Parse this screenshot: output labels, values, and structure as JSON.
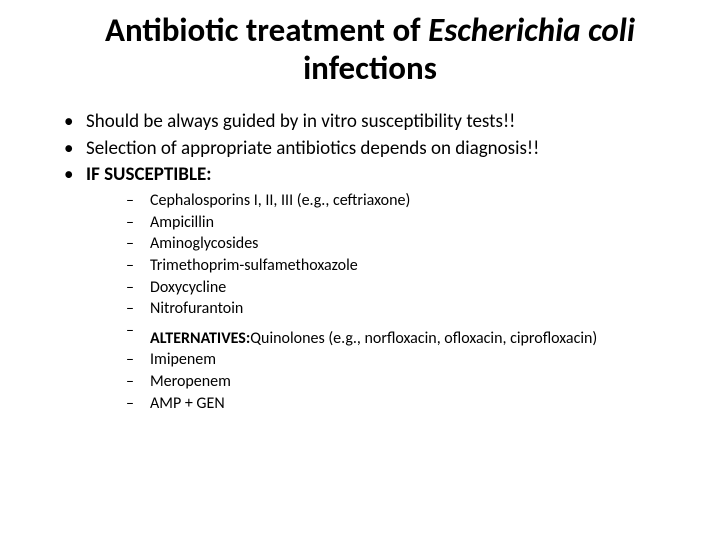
{
  "title": {
    "part1": "Antibiotic treatment of ",
    "italic": "Escherichia coli",
    "part2": " infections"
  },
  "bullets_top": [
    "Should be always guided by in vitro susceptibility tests!!",
    "Selection of appropriate antibiotics depends on diagnosis!!"
  ],
  "subhead": "IF SUSCEPTIBLE:",
  "sub_items_a": [
    "Cephalosporins I, II, III (e.g., ceftriaxone)",
    "Ampicillin",
    "Aminoglycosides",
    "Trimethoprim-sulfamethoxazole",
    "Doxycycline",
    "Nitrofurantoin"
  ],
  "alternatives": {
    "label": "ALTERNATIVES:",
    "text": "Quinolones (e.g., norfloxacin, ofloxacin, ciprofloxacin)"
  },
  "sub_items_b": [
    "Imipenem",
    "Meropenem",
    "AMP + GEN"
  ]
}
